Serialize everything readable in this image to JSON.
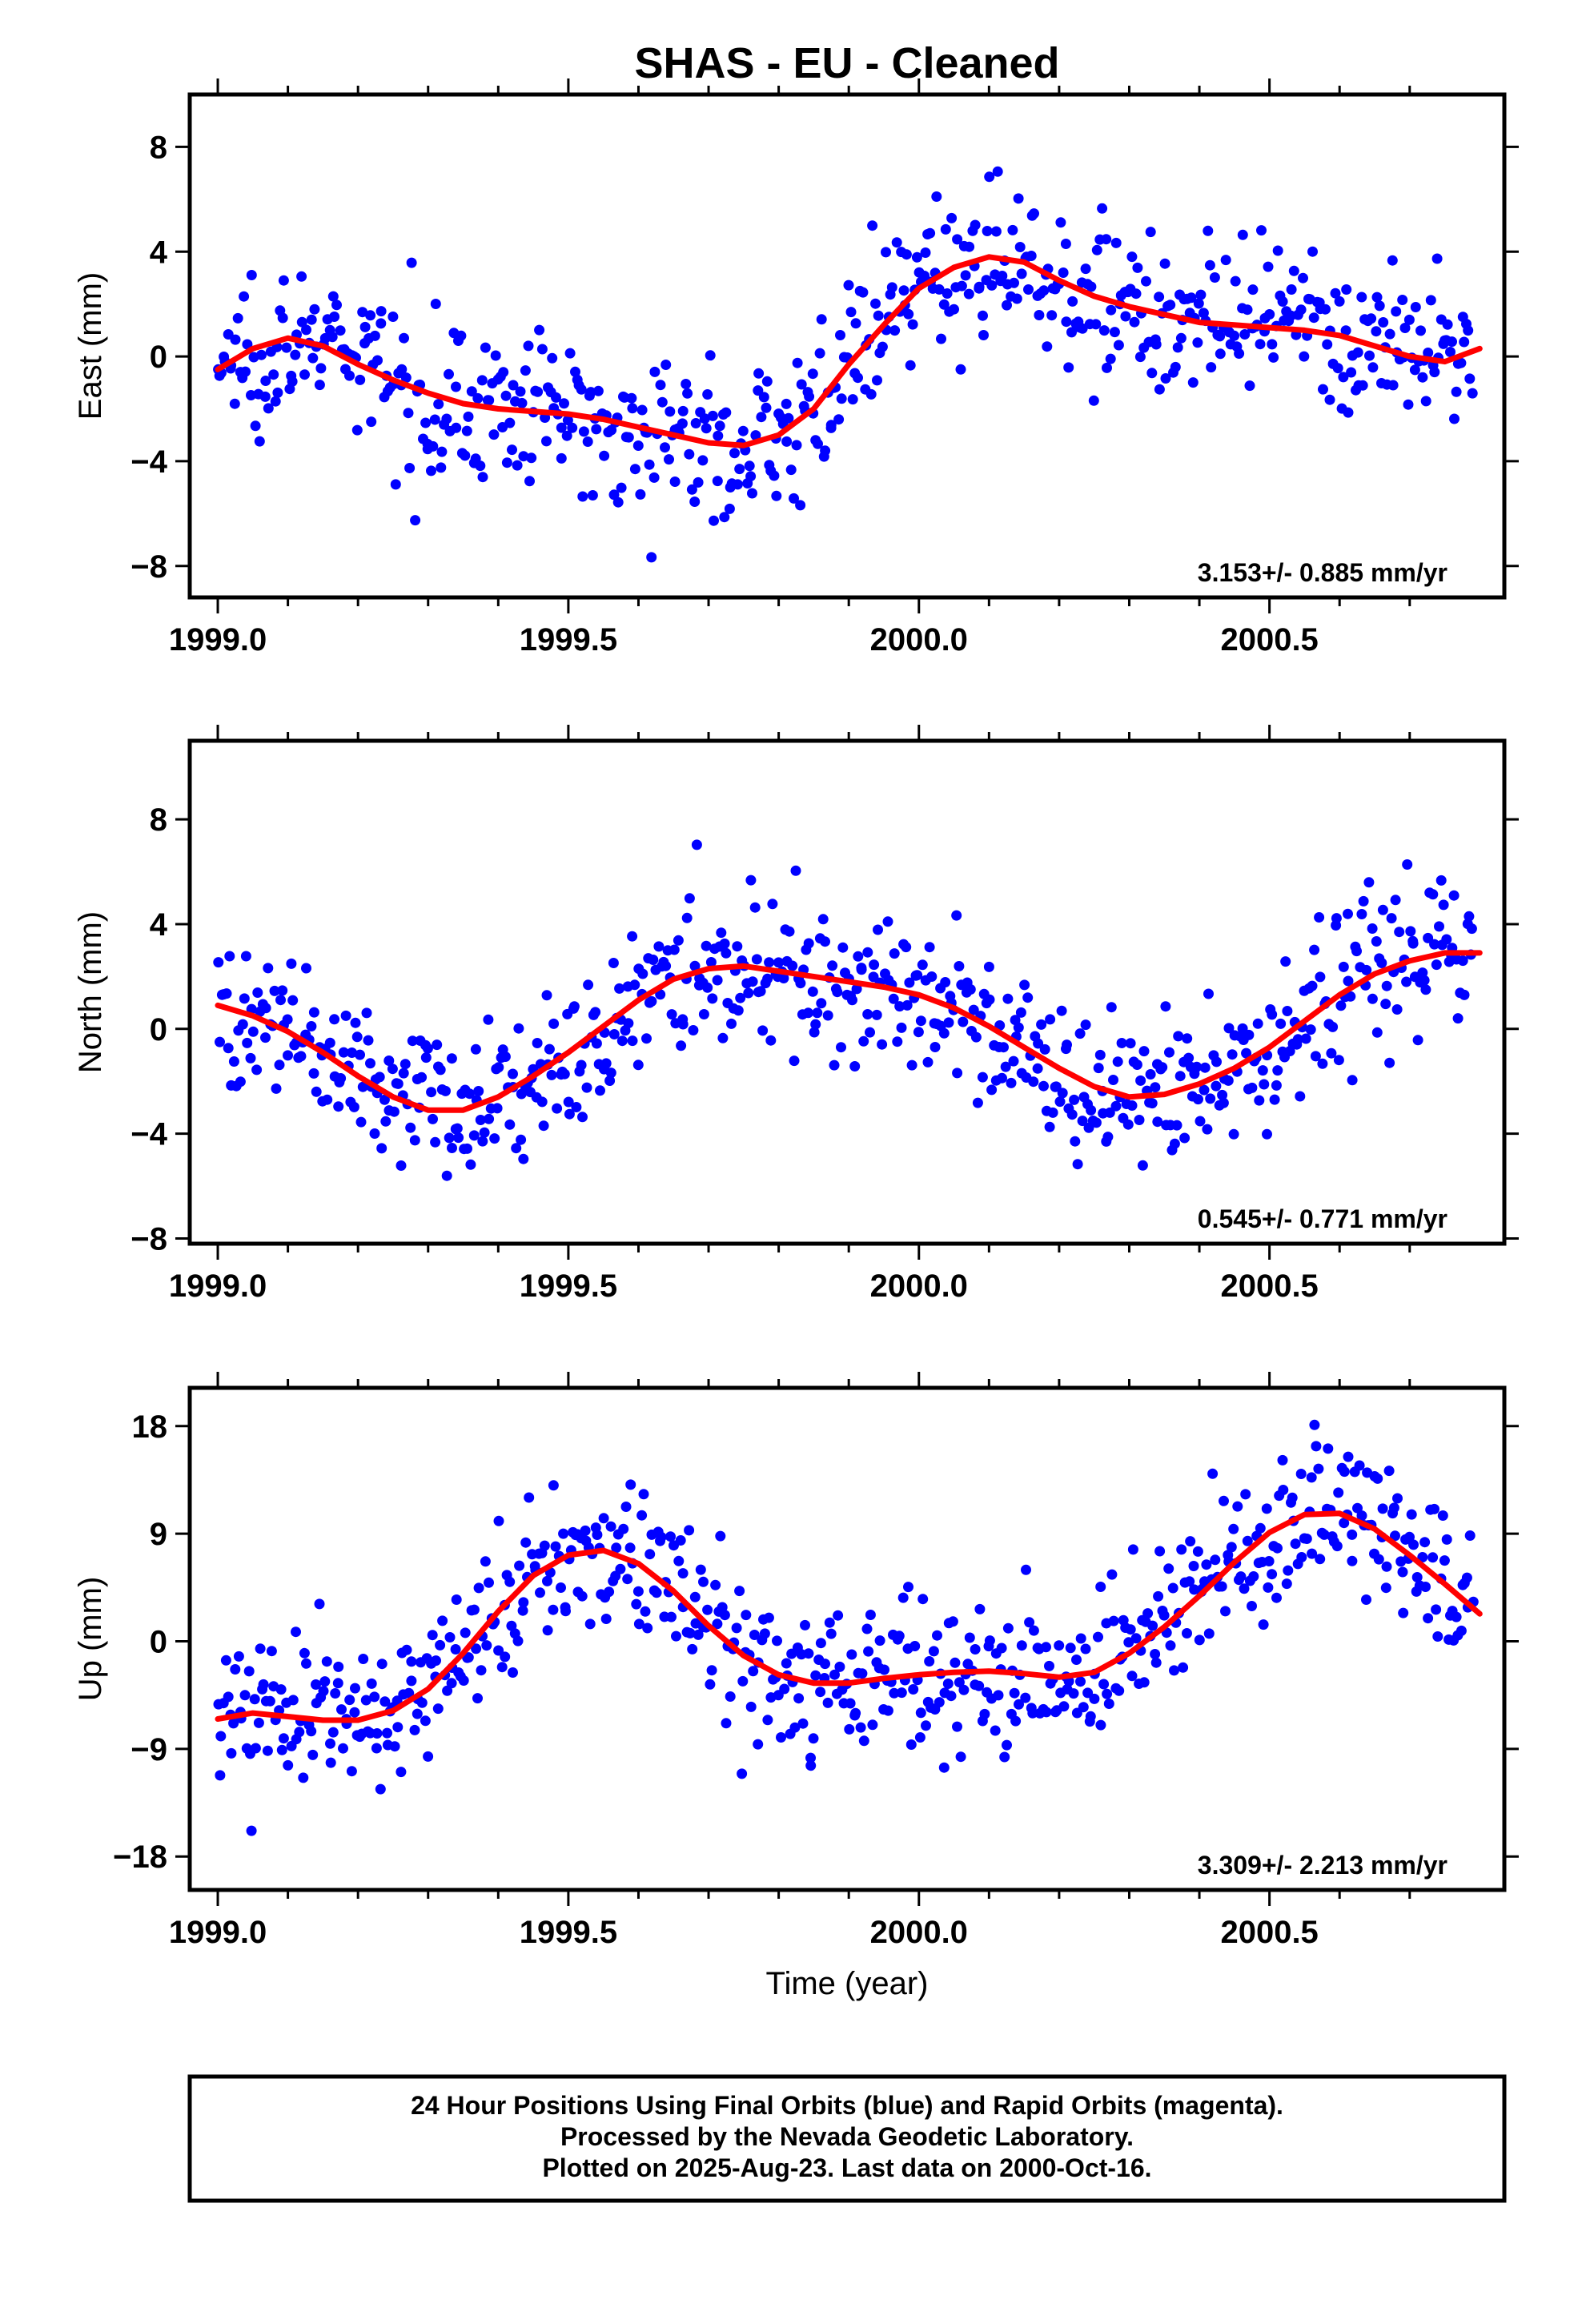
{
  "chart_data": [
    {
      "type": "scatter",
      "title": "SHAS  - EU - Cleaned",
      "ylabel": "East (mm)",
      "xlabel": "",
      "xlim": [
        1998.96,
        2000.835
      ],
      "ylim": [
        -9.2,
        10.0
      ],
      "xticks": [
        "1999.0",
        "1999.5",
        "2000.0",
        "2000.5"
      ],
      "xtick_values": [
        1999.0,
        1999.5,
        2000.0,
        2000.5
      ],
      "yticks": [
        "−8",
        "−4",
        "0",
        "4",
        "8"
      ],
      "ytick_values": [
        -8,
        -4,
        0,
        4,
        8
      ],
      "rate": "3.153+/- 0.885 mm/yr",
      "grid": false,
      "model_x": [
        1999.0,
        1999.05,
        1999.1,
        1999.15,
        1999.2,
        1999.25,
        1999.3,
        1999.35,
        1999.4,
        1999.45,
        1999.5,
        1999.55,
        1999.6,
        1999.65,
        1999.7,
        1999.75,
        1999.8,
        1999.85,
        1999.9,
        1999.95,
        2000.0,
        2000.05,
        2000.1,
        2000.15,
        2000.2,
        2000.25,
        2000.3,
        2000.35,
        2000.4,
        2000.45,
        2000.5,
        2000.55,
        2000.6,
        2000.65,
        2000.7,
        2000.75,
        2000.8
      ],
      "model_y": [
        -0.5,
        0.3,
        0.7,
        0.4,
        -0.3,
        -0.9,
        -1.4,
        -1.8,
        -2.0,
        -2.1,
        -2.2,
        -2.4,
        -2.7,
        -3.0,
        -3.3,
        -3.4,
        -3.0,
        -2.0,
        -0.3,
        1.2,
        2.6,
        3.4,
        3.8,
        3.6,
        2.9,
        2.3,
        1.9,
        1.6,
        1.3,
        1.2,
        1.1,
        1.0,
        0.8,
        0.4,
        0.0,
        -0.2,
        0.3
      ]
    },
    {
      "type": "scatter",
      "title": "",
      "ylabel": "North (mm)",
      "xlabel": "",
      "xlim": [
        1998.96,
        2000.835
      ],
      "ylim": [
        -8.2,
        11.0
      ],
      "xticks": [
        "1999.0",
        "1999.5",
        "2000.0",
        "2000.5"
      ],
      "xtick_values": [
        1999.0,
        1999.5,
        2000.0,
        2000.5
      ],
      "yticks": [
        "−8",
        "−4",
        "0",
        "4",
        "8"
      ],
      "ytick_values": [
        -8,
        -4,
        0,
        4,
        8
      ],
      "rate": "0.545+/- 0.771 mm/yr",
      "grid": false,
      "model_x": [
        1999.0,
        1999.05,
        1999.1,
        1999.15,
        1999.2,
        1999.25,
        1999.3,
        1999.35,
        1999.4,
        1999.45,
        1999.5,
        1999.55,
        1999.6,
        1999.65,
        1999.7,
        1999.75,
        1999.8,
        1999.85,
        1999.9,
        1999.95,
        2000.0,
        2000.05,
        2000.1,
        2000.15,
        2000.2,
        2000.25,
        2000.3,
        2000.35,
        2000.4,
        2000.45,
        2000.5,
        2000.55,
        2000.6,
        2000.65,
        2000.7,
        2000.75,
        2000.8
      ],
      "model_y": [
        0.9,
        0.5,
        -0.1,
        -0.9,
        -1.8,
        -2.6,
        -3.1,
        -3.1,
        -2.6,
        -1.8,
        -0.9,
        0.1,
        1.1,
        1.9,
        2.3,
        2.4,
        2.2,
        2.0,
        1.8,
        1.6,
        1.3,
        0.8,
        0.1,
        -0.7,
        -1.5,
        -2.2,
        -2.6,
        -2.5,
        -2.1,
        -1.5,
        -0.7,
        0.3,
        1.3,
        2.1,
        2.6,
        2.9,
        2.9
      ]
    },
    {
      "type": "scatter",
      "title": "",
      "ylabel": "Up (mm)",
      "xlabel": "Time (year)",
      "xlim": [
        1998.96,
        2000.835
      ],
      "ylim": [
        -20.8,
        21.2
      ],
      "xticks": [
        "1999.0",
        "1999.5",
        "2000.0",
        "2000.5"
      ],
      "xtick_values": [
        1999.0,
        1999.5,
        2000.0,
        2000.5
      ],
      "yticks": [
        "−18",
        "−9",
        "0",
        "9",
        "18"
      ],
      "ytick_values": [
        -18,
        -9,
        0,
        9,
        18
      ],
      "rate": "3.309+/- 2.213 mm/yr",
      "grid": false,
      "model_x": [
        1999.0,
        1999.05,
        1999.1,
        1999.15,
        1999.2,
        1999.25,
        1999.3,
        1999.35,
        1999.4,
        1999.45,
        1999.5,
        1999.55,
        1999.6,
        1999.65,
        1999.7,
        1999.75,
        1999.8,
        1999.85,
        1999.9,
        1999.95,
        2000.0,
        2000.05,
        2000.1,
        2000.15,
        2000.2,
        2000.25,
        2000.3,
        2000.35,
        2000.4,
        2000.45,
        2000.5,
        2000.55,
        2000.6,
        2000.65,
        2000.7,
        2000.75,
        2000.8
      ],
      "model_y": [
        -6.5,
        -6.0,
        -6.3,
        -6.6,
        -6.6,
        -5.8,
        -4.0,
        -1.0,
        2.5,
        5.5,
        7.2,
        7.6,
        6.5,
        4.2,
        1.3,
        -1.2,
        -2.8,
        -3.5,
        -3.5,
        -3.1,
        -2.8,
        -2.6,
        -2.5,
        -2.7,
        -3.0,
        -2.6,
        -1.0,
        1.2,
        3.8,
        6.6,
        9.1,
        10.6,
        10.7,
        9.4,
        7.2,
        4.8,
        2.3
      ]
    }
  ],
  "footer": {
    "line1": "24 Hour Positions Using Final Orbits (blue) and Rapid Orbits (magenta).",
    "line2": "Processed by the Nevada Geodetic Laboratory.",
    "line3": "Plotted on 2025-Aug-23. Last data on 2000-Oct-16."
  },
  "colors": {
    "points": "#0000ff",
    "model": "#ff0000",
    "frame": "#000000"
  }
}
